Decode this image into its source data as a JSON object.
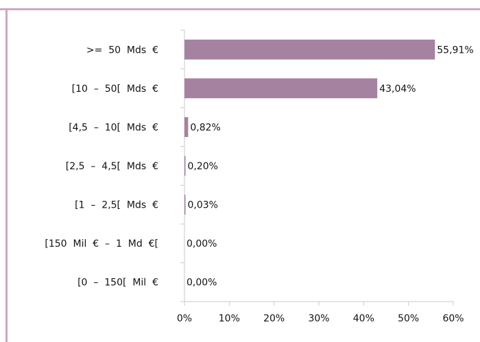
{
  "chart_data": {
    "type": "bar",
    "orientation": "horizontal",
    "categories": [
      ">=  50  Mds  €",
      "[10  –  50[  Mds  €",
      "[4,5  –  10[  Mds  €",
      "[2,5  –  4,5[  Mds  €",
      "[1  –  2,5[  Mds  €",
      "[150  Mil  €  –  1  Md  €[",
      "[0  –  150[  Mil  €"
    ],
    "values": [
      55.91,
      43.04,
      0.82,
      0.2,
      0.03,
      0.0,
      0.0
    ],
    "data_labels": [
      "55,91%",
      "43,04%",
      "0,82%",
      "0,20%",
      "0,03%",
      "0,00%",
      "0,00%"
    ],
    "xticks": [
      0,
      10,
      20,
      30,
      40,
      50,
      60
    ],
    "xtick_labels": [
      "0%",
      "10%",
      "20%",
      "30%",
      "40%",
      "50%",
      "60%"
    ],
    "xlim": [
      0,
      60
    ],
    "grid": false,
    "legend": "none",
    "bar_color": "#a5829f",
    "frame_color": "#c9a9c4",
    "axis_color": "#c9c9c9"
  }
}
